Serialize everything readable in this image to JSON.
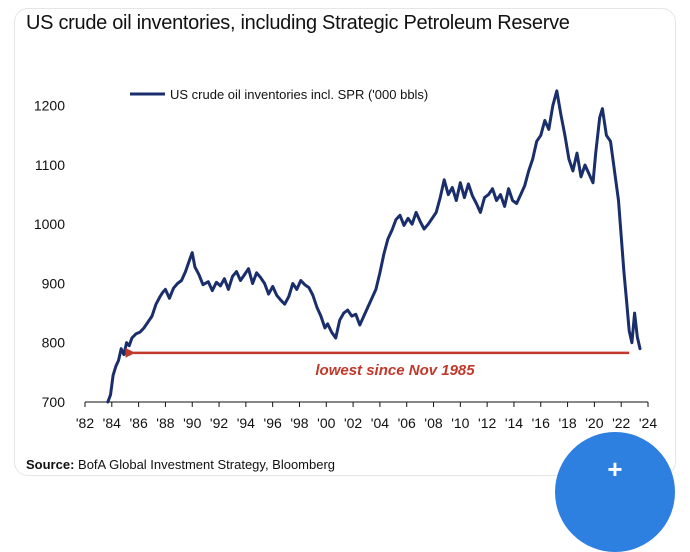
{
  "title": "US crude oil inventories, including Strategic Petroleum Reserve",
  "source_label": "Source:",
  "source_text": "BofA Global Investment Strategy, Bloomberg",
  "fab_icon": "+",
  "colors": {
    "series": "#1a2e6b",
    "annotation": "#c0392b",
    "fab": "#2d7fe0"
  },
  "chart_data": {
    "type": "line",
    "title": "US crude oil inventories, including Strategic Petroleum Reserve",
    "xlabel": "",
    "ylabel": "",
    "xlim": [
      1982,
      2024
    ],
    "ylim": [
      700,
      1240
    ],
    "x_ticks": [
      {
        "value": 1982,
        "label": "'82"
      },
      {
        "value": 1984,
        "label": "'84"
      },
      {
        "value": 1986,
        "label": "'86"
      },
      {
        "value": 1988,
        "label": "'88"
      },
      {
        "value": 1990,
        "label": "'90"
      },
      {
        "value": 1992,
        "label": "'92"
      },
      {
        "value": 1994,
        "label": "'94"
      },
      {
        "value": 1996,
        "label": "'96"
      },
      {
        "value": 1998,
        "label": "'98"
      },
      {
        "value": 2000,
        "label": "'00"
      },
      {
        "value": 2002,
        "label": "'02"
      },
      {
        "value": 2004,
        "label": "'04"
      },
      {
        "value": 2006,
        "label": "'06"
      },
      {
        "value": 2008,
        "label": "'08"
      },
      {
        "value": 2010,
        "label": "'10"
      },
      {
        "value": 2012,
        "label": "'12"
      },
      {
        "value": 2014,
        "label": "'14"
      },
      {
        "value": 2016,
        "label": "'16"
      },
      {
        "value": 2018,
        "label": "'18"
      },
      {
        "value": 2020,
        "label": "'20"
      },
      {
        "value": 2022,
        "label": "'22"
      },
      {
        "value": 2024,
        "label": "'24"
      }
    ],
    "y_ticks": [
      700,
      800,
      900,
      1000,
      1100,
      1200
    ],
    "legend": "US crude oil inventories incl. SPR ('000 bbls)",
    "legend_position": "top-left",
    "series": [
      {
        "name": "US crude oil inventories incl. SPR ('000 bbls)",
        "points": [
          [
            1983.7,
            700
          ],
          [
            1983.9,
            712
          ],
          [
            1984.1,
            745
          ],
          [
            1984.3,
            760
          ],
          [
            1984.5,
            770
          ],
          [
            1984.7,
            790
          ],
          [
            1984.9,
            780
          ],
          [
            1985.1,
            800
          ],
          [
            1985.3,
            795
          ],
          [
            1985.5,
            808
          ],
          [
            1985.8,
            815
          ],
          [
            1986.1,
            818
          ],
          [
            1986.4,
            825
          ],
          [
            1986.7,
            835
          ],
          [
            1987.0,
            845
          ],
          [
            1987.3,
            865
          ],
          [
            1987.6,
            878
          ],
          [
            1987.8,
            885
          ],
          [
            1988.0,
            890
          ],
          [
            1988.3,
            875
          ],
          [
            1988.6,
            892
          ],
          [
            1988.9,
            900
          ],
          [
            1989.2,
            905
          ],
          [
            1989.5,
            920
          ],
          [
            1989.8,
            940
          ],
          [
            1990.0,
            952
          ],
          [
            1990.2,
            928
          ],
          [
            1990.5,
            915
          ],
          [
            1990.8,
            898
          ],
          [
            1991.2,
            903
          ],
          [
            1991.5,
            888
          ],
          [
            1991.8,
            902
          ],
          [
            1992.1,
            896
          ],
          [
            1992.4,
            908
          ],
          [
            1992.7,
            890
          ],
          [
            1993.0,
            912
          ],
          [
            1993.3,
            920
          ],
          [
            1993.6,
            905
          ],
          [
            1993.9,
            915
          ],
          [
            1994.2,
            925
          ],
          [
            1994.5,
            900
          ],
          [
            1994.8,
            918
          ],
          [
            1995.1,
            910
          ],
          [
            1995.4,
            900
          ],
          [
            1995.7,
            882
          ],
          [
            1996.0,
            895
          ],
          [
            1996.3,
            880
          ],
          [
            1996.6,
            872
          ],
          [
            1996.9,
            865
          ],
          [
            1997.2,
            878
          ],
          [
            1997.5,
            900
          ],
          [
            1997.8,
            890
          ],
          [
            1998.1,
            905
          ],
          [
            1998.4,
            898
          ],
          [
            1998.7,
            893
          ],
          [
            1999.0,
            880
          ],
          [
            1999.3,
            860
          ],
          [
            1999.6,
            845
          ],
          [
            1999.9,
            825
          ],
          [
            2000.1,
            832
          ],
          [
            2000.4,
            818
          ],
          [
            2000.7,
            808
          ],
          [
            2001.0,
            838
          ],
          [
            2001.3,
            850
          ],
          [
            2001.6,
            855
          ],
          [
            2001.9,
            845
          ],
          [
            2002.2,
            848
          ],
          [
            2002.5,
            830
          ],
          [
            2002.8,
            845
          ],
          [
            2003.1,
            860
          ],
          [
            2003.4,
            875
          ],
          [
            2003.7,
            890
          ],
          [
            2004.0,
            918
          ],
          [
            2004.3,
            950
          ],
          [
            2004.6,
            975
          ],
          [
            2004.9,
            990
          ],
          [
            2005.2,
            1008
          ],
          [
            2005.5,
            1015
          ],
          [
            2005.8,
            998
          ],
          [
            2006.1,
            1010
          ],
          [
            2006.4,
            1000
          ],
          [
            2006.7,
            1020
          ],
          [
            2007.0,
            1005
          ],
          [
            2007.3,
            992
          ],
          [
            2007.6,
            1000
          ],
          [
            2007.9,
            1010
          ],
          [
            2008.2,
            1020
          ],
          [
            2008.5,
            1045
          ],
          [
            2008.8,
            1075
          ],
          [
            2009.1,
            1050
          ],
          [
            2009.4,
            1062
          ],
          [
            2009.7,
            1040
          ],
          [
            2010.0,
            1070
          ],
          [
            2010.3,
            1045
          ],
          [
            2010.6,
            1068
          ],
          [
            2010.9,
            1048
          ],
          [
            2011.2,
            1035
          ],
          [
            2011.5,
            1020
          ],
          [
            2011.8,
            1045
          ],
          [
            2012.1,
            1050
          ],
          [
            2012.4,
            1060
          ],
          [
            2012.7,
            1040
          ],
          [
            2013.0,
            1050
          ],
          [
            2013.3,
            1030
          ],
          [
            2013.6,
            1060
          ],
          [
            2013.9,
            1040
          ],
          [
            2014.2,
            1035
          ],
          [
            2014.5,
            1050
          ],
          [
            2014.8,
            1065
          ],
          [
            2015.1,
            1090
          ],
          [
            2015.4,
            1110
          ],
          [
            2015.7,
            1140
          ],
          [
            2016.0,
            1150
          ],
          [
            2016.3,
            1175
          ],
          [
            2016.6,
            1160
          ],
          [
            2016.9,
            1200
          ],
          [
            2017.2,
            1225
          ],
          [
            2017.5,
            1185
          ],
          [
            2017.8,
            1150
          ],
          [
            2018.1,
            1110
          ],
          [
            2018.4,
            1090
          ],
          [
            2018.7,
            1120
          ],
          [
            2019.0,
            1080
          ],
          [
            2019.3,
            1100
          ],
          [
            2019.6,
            1085
          ],
          [
            2019.9,
            1070
          ],
          [
            2020.1,
            1120
          ],
          [
            2020.4,
            1180
          ],
          [
            2020.6,
            1195
          ],
          [
            2020.9,
            1150
          ],
          [
            2021.2,
            1140
          ],
          [
            2021.5,
            1090
          ],
          [
            2021.8,
            1040
          ],
          [
            2022.0,
            980
          ],
          [
            2022.2,
            920
          ],
          [
            2022.4,
            870
          ],
          [
            2022.6,
            820
          ],
          [
            2022.8,
            800
          ],
          [
            2023.0,
            850
          ],
          [
            2023.2,
            810
          ],
          [
            2023.4,
            790
          ]
        ]
      }
    ],
    "annotations": [
      {
        "text": "lowest since Nov 1985",
        "arrow_from_x": 2022.6,
        "arrow_to_x": 1985.6,
        "y": 783
      }
    ]
  }
}
